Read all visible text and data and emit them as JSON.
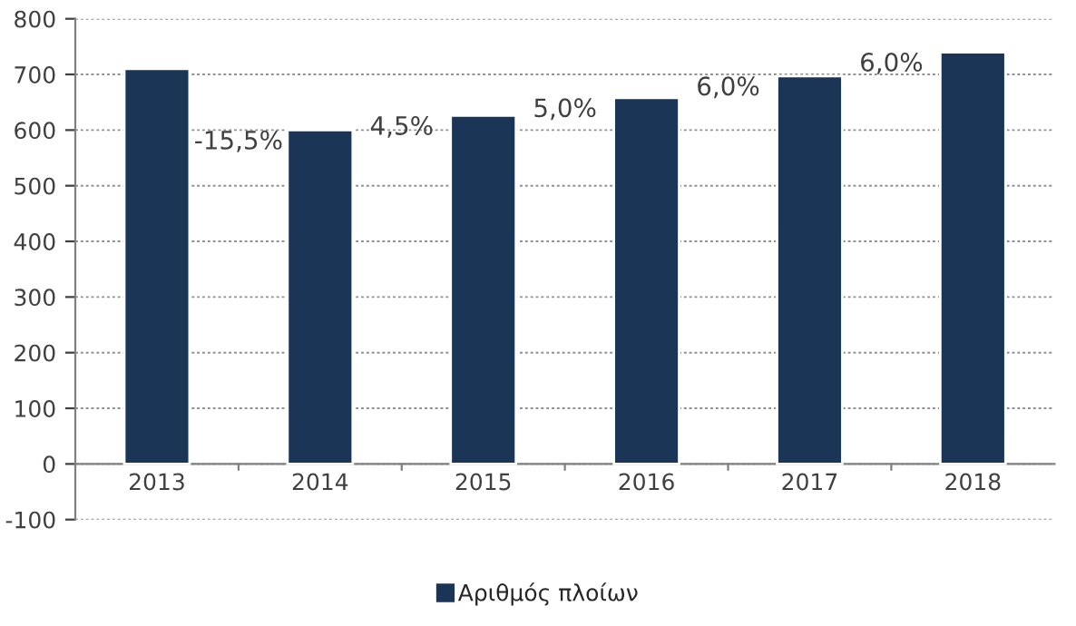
{
  "chart_data": {
    "type": "bar",
    "categories": [
      "2013",
      "2014",
      "2015",
      "2016",
      "2017",
      "2018"
    ],
    "series": [
      {
        "name": "Αριθμός πλοίων",
        "color": "#1b3556",
        "values": [
          710,
          600,
          626,
          658,
          697,
          740
        ]
      }
    ],
    "ylim": [
      -100,
      800
    ],
    "yticks": [
      -100,
      0,
      100,
      200,
      300,
      400,
      500,
      600,
      700,
      800
    ],
    "grid": "y",
    "legend": "bottom",
    "annotations": [
      "-15,5%",
      "4,5%",
      "5,0%",
      "6,0%",
      "6,0%"
    ]
  }
}
